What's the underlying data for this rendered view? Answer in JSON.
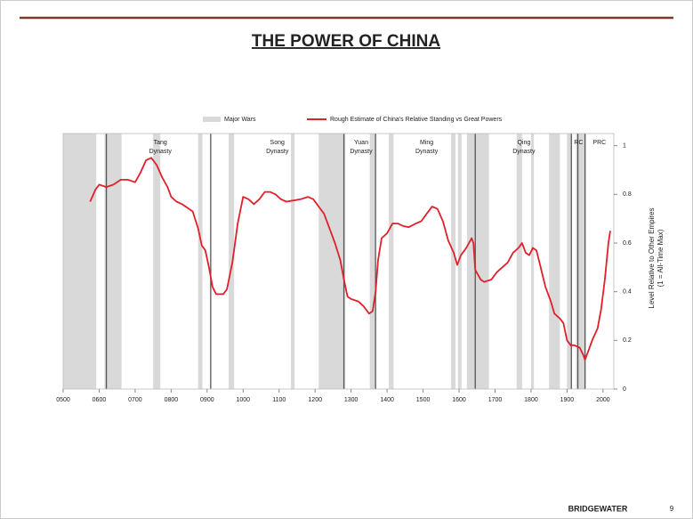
{
  "title": "THE POWER OF CHINA",
  "footer": {
    "brand": "BRIDGEWATER",
    "page": "9"
  },
  "chart_data": {
    "type": "line",
    "x": [
      575,
      590,
      600,
      620,
      640,
      660,
      680,
      700,
      715,
      730,
      745,
      760,
      775,
      790,
      800,
      815,
      830,
      845,
      860,
      875,
      885,
      895,
      905,
      915,
      925,
      945,
      955,
      970,
      985,
      1000,
      1015,
      1030,
      1045,
      1060,
      1075,
      1090,
      1105,
      1120,
      1140,
      1160,
      1180,
      1195,
      1210,
      1225,
      1240,
      1255,
      1270,
      1280,
      1290,
      1300,
      1320,
      1335,
      1350,
      1360,
      1368,
      1375,
      1385,
      1400,
      1415,
      1430,
      1445,
      1460,
      1480,
      1495,
      1510,
      1525,
      1540,
      1555,
      1570,
      1585,
      1595,
      1605,
      1620,
      1635,
      1640,
      1645,
      1660,
      1670,
      1690,
      1705,
      1720,
      1735,
      1750,
      1765,
      1775,
      1785,
      1795,
      1805,
      1815,
      1825,
      1840,
      1855,
      1865,
      1880,
      1890,
      1900,
      1910,
      1920,
      1935,
      1945,
      1950,
      1960,
      1970,
      1985,
      1995,
      2005,
      2015,
      2020
    ],
    "series": [
      {
        "name": "Rough Estimate of China's Relative Standing vs Great Powers",
        "color": "#e0202a",
        "values": [
          0.77,
          0.82,
          0.84,
          0.83,
          0.84,
          0.86,
          0.86,
          0.85,
          0.89,
          0.94,
          0.95,
          0.92,
          0.87,
          0.83,
          0.79,
          0.77,
          0.76,
          0.745,
          0.73,
          0.66,
          0.59,
          0.57,
          0.5,
          0.42,
          0.39,
          0.39,
          0.41,
          0.52,
          0.68,
          0.79,
          0.78,
          0.76,
          0.78,
          0.81,
          0.81,
          0.8,
          0.78,
          0.77,
          0.775,
          0.78,
          0.79,
          0.78,
          0.75,
          0.72,
          0.66,
          0.6,
          0.53,
          0.45,
          0.38,
          0.37,
          0.36,
          0.34,
          0.31,
          0.32,
          0.4,
          0.53,
          0.62,
          0.64,
          0.68,
          0.68,
          0.67,
          0.665,
          0.68,
          0.69,
          0.72,
          0.75,
          0.74,
          0.69,
          0.61,
          0.56,
          0.51,
          0.55,
          0.58,
          0.62,
          0.6,
          0.49,
          0.45,
          0.44,
          0.45,
          0.48,
          0.5,
          0.52,
          0.56,
          0.58,
          0.6,
          0.56,
          0.55,
          0.58,
          0.57,
          0.51,
          0.42,
          0.36,
          0.31,
          0.29,
          0.27,
          0.2,
          0.18,
          0.18,
          0.17,
          0.14,
          0.12,
          0.16,
          0.2,
          0.25,
          0.33,
          0.45,
          0.6,
          0.65
        ]
      }
    ],
    "xlim": [
      500,
      2030
    ],
    "xticks": [
      {
        "value": 500,
        "label": "0500"
      },
      {
        "value": 600,
        "label": "0600"
      },
      {
        "value": 700,
        "label": "0700"
      },
      {
        "value": 800,
        "label": "0800"
      },
      {
        "value": 900,
        "label": "0900"
      },
      1000,
      1100,
      1200,
      1300,
      1400,
      1500,
      1600,
      1700,
      1800,
      1900,
      2000
    ],
    "ylim": [
      0,
      1.05
    ],
    "yticks": [
      0,
      0.2,
      0.4,
      0.6,
      0.8,
      1
    ],
    "y_axis_side": "right",
    "y_label": [
      "Level Relative to Other Empires",
      "(1 = All-Time Max)"
    ],
    "wars": {
      "name": "Major Wars",
      "color": "#d9d9d9",
      "ranges": [
        [
          500,
          592
        ],
        [
          615,
          662
        ],
        [
          750,
          770
        ],
        [
          875,
          887
        ],
        [
          960,
          975
        ],
        [
          1133,
          1143
        ],
        [
          1210,
          1284
        ],
        [
          1352,
          1367
        ],
        [
          1405,
          1418
        ],
        [
          1578,
          1590
        ],
        [
          1597,
          1607
        ],
        [
          1622,
          1683
        ],
        [
          1760,
          1775
        ],
        [
          1800,
          1808
        ],
        [
          1850,
          1880
        ],
        [
          1900,
          1910
        ],
        [
          1925,
          1952
        ]
      ]
    },
    "boundaries": [
      620,
      910,
      1280,
      1368,
      1645,
      1912,
      1930,
      1950
    ],
    "dynasties": [
      {
        "lines": [
          "Tang",
          "Dynasty"
        ],
        "x": 770
      },
      {
        "lines": [
          "Song",
          "Dynasty"
        ],
        "x": 1095
      },
      {
        "lines": [
          "Yuan",
          "Dynasty"
        ],
        "x": 1328
      },
      {
        "lines": [
          "Ming",
          "Dynasty"
        ],
        "x": 1510
      },
      {
        "lines": [
          "Qing",
          "Dynasty"
        ],
        "x": 1780
      },
      {
        "lines": [
          "RC"
        ],
        "x": 1932
      },
      {
        "lines": [
          "PRC"
        ],
        "x": 1990
      }
    ]
  }
}
